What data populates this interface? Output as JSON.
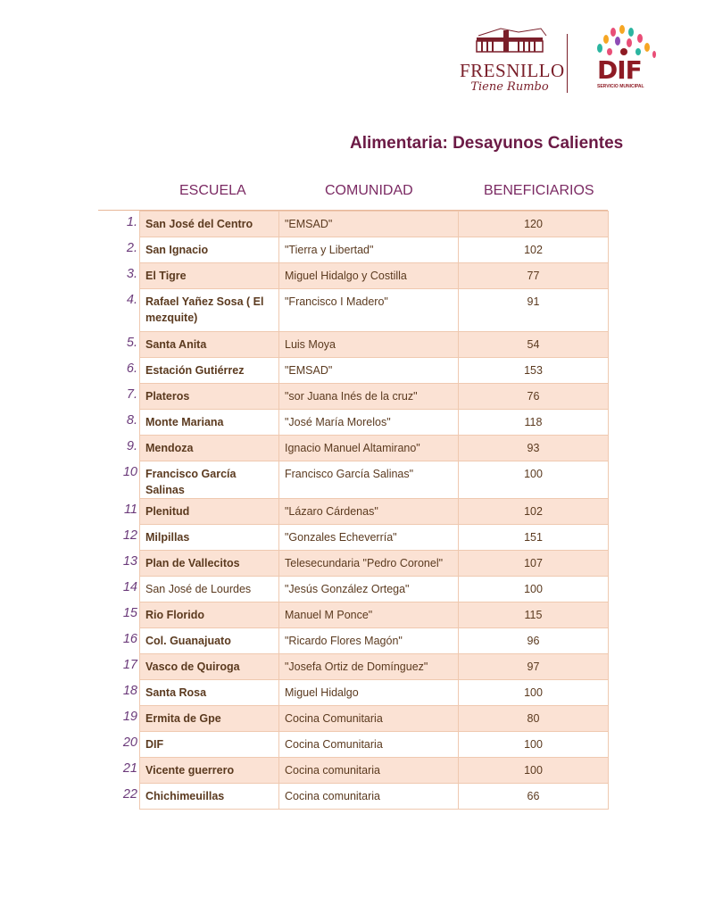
{
  "logos": {
    "fresnillo_name": "FRESNILLO",
    "fresnillo_tagline": "Tiene Rumbo",
    "dif_name": "DIF",
    "dif_sub": "SERVICIO MUNICIPAL"
  },
  "title": "Alimentaria: Desayunos Calientes",
  "headers": {
    "escuela": "ESCUELA",
    "comunidad": "COMUNIDAD",
    "beneficiarios": "BENEFICIARIOS"
  },
  "rows": [
    {
      "n": "1.",
      "escuela": "San José del Centro",
      "comunidad": "\"EMSAD\"",
      "beneficiarios": "120"
    },
    {
      "n": "2.",
      "escuela": "San Ignacio",
      "comunidad": "\"Tierra y Libertad\"",
      "beneficiarios": "102"
    },
    {
      "n": "3.",
      "escuela": "El Tigre",
      "comunidad": "Miguel Hidalgo y Costilla",
      "beneficiarios": "77"
    },
    {
      "n": "4.",
      "escuela": "Rafael Yañez Sosa ( El mezquite)",
      "comunidad": "\"Francisco I Madero\"",
      "beneficiarios": "91"
    },
    {
      "n": "5.",
      "escuela": "Santa Anita",
      "comunidad": "Luis Moya",
      "beneficiarios": "54"
    },
    {
      "n": "6.",
      "escuela": "Estación Gutiérrez",
      "comunidad": "\"EMSAD\"",
      "beneficiarios": "153"
    },
    {
      "n": "7.",
      "escuela": "Plateros",
      "comunidad": "\"sor Juana Inés de la cruz\"",
      "beneficiarios": "76"
    },
    {
      "n": "8.",
      "escuela": "Monte Mariana",
      "comunidad": "\"José María Morelos\"",
      "beneficiarios": "118"
    },
    {
      "n": "9.",
      "escuela": "Mendoza",
      "comunidad": "Ignacio Manuel Altamirano\"",
      "beneficiarios": "93"
    },
    {
      "n": "10",
      "escuela": "Francisco García Salinas",
      "comunidad": "Francisco García Salinas\"",
      "beneficiarios": "100"
    },
    {
      "n": "11",
      "escuela": "Plenitud",
      "comunidad": "\"Lázaro Cárdenas\"",
      "beneficiarios": "102"
    },
    {
      "n": "12",
      "escuela": "Milpillas",
      "comunidad": "\"Gonzales Echeverría\"",
      "beneficiarios": "151"
    },
    {
      "n": "13",
      "escuela": "Plan de Vallecitos",
      "comunidad": "Telesecundaria \"Pedro Coronel\"",
      "beneficiarios": "107"
    },
    {
      "n": "14",
      "escuela": "San José de Lourdes",
      "comunidad": "\"Jesús González Ortega\"",
      "beneficiarios": "100"
    },
    {
      "n": "15",
      "escuela": " Rio Florido",
      "comunidad": "Manuel M Ponce\"",
      "beneficiarios": "115"
    },
    {
      "n": "16",
      "escuela": "Col. Guanajuato",
      "comunidad": "\"Ricardo Flores Magón\"",
      "beneficiarios": "96"
    },
    {
      "n": "17",
      "escuela": " Vasco de Quiroga",
      "comunidad": "\"Josefa Ortiz de Domínguez\"",
      "beneficiarios": "97"
    },
    {
      "n": "18",
      "escuela": " Santa Rosa",
      "comunidad": "Miguel Hidalgo",
      "beneficiarios": "100"
    },
    {
      "n": "19",
      "escuela": "Ermita de Gpe",
      "comunidad": "Cocina Comunitaria",
      "beneficiarios": "80"
    },
    {
      "n": "20",
      "escuela": "DIF",
      "comunidad": "Cocina Comunitaria",
      "beneficiarios": "100"
    },
    {
      "n": "21",
      "escuela": "Vicente guerrero",
      "comunidad": "Cocina comunitaria",
      "beneficiarios": "100"
    },
    {
      "n": "22",
      "escuela": "Chichimeuillas",
      "comunidad": "Cocina comunitaria",
      "beneficiarios": "66"
    }
  ]
}
